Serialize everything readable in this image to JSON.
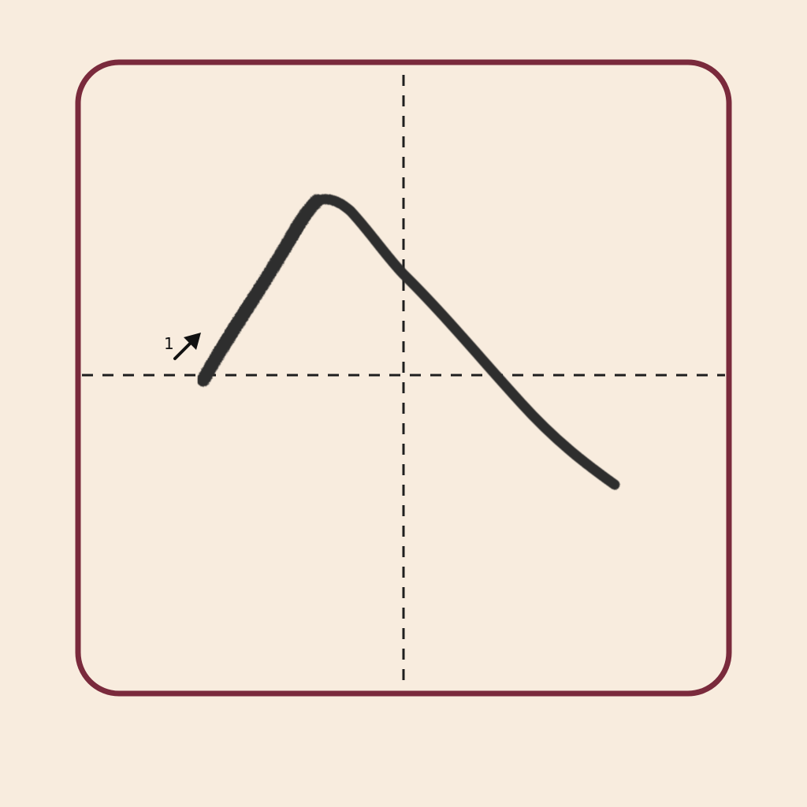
{
  "colors": {
    "background": "#f8ecde",
    "frame": "#7a2a3c",
    "guide": "#1e1e1e",
    "ink": "#2f2f2f",
    "arrow": "#111111"
  },
  "guides": {
    "vertical_center": "dashed",
    "horizontal_center": "dashed"
  },
  "strokes": [
    {
      "order": "1",
      "direction_icon": "up-right-arrow-icon",
      "shape": "rise-then-fall"
    }
  ]
}
